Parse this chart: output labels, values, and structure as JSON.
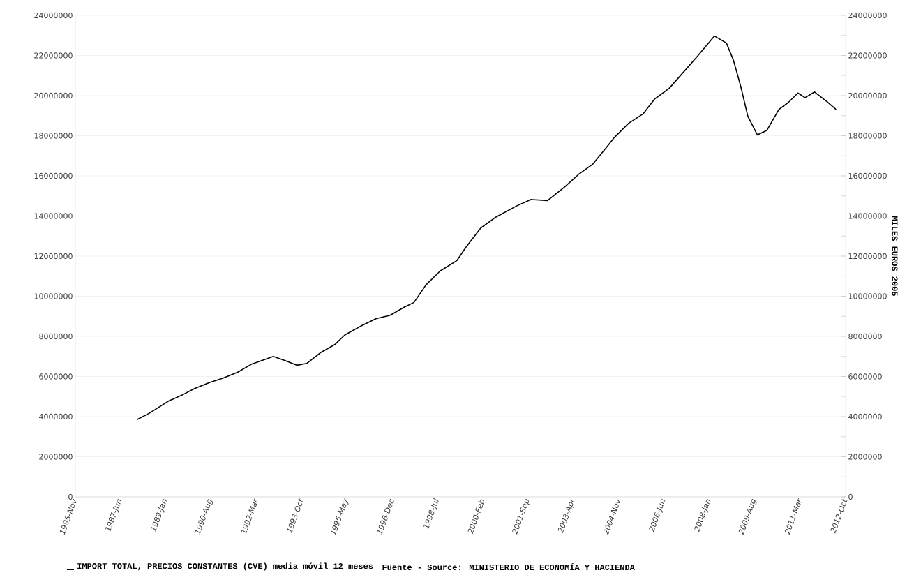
{
  "chart_data": {
    "type": "line",
    "y2label": "MILES EUROS 2005",
    "annotations": [
      "Fuente - Source: MINISTERIO DE ECONOMÍA Y HACIENDA"
    ],
    "x": [
      "1988-01",
      "1988-06",
      "1989-02",
      "1989-08",
      "1990-01",
      "1990-07",
      "1991-01",
      "1991-07",
      "1992-01",
      "1992-10",
      "1993-03",
      "1993-08",
      "1993-12",
      "1994-06",
      "1994-12",
      "1995-04",
      "1995-11",
      "1996-05",
      "1996-11",
      "1997-05",
      "1997-09",
      "1998-02",
      "1998-08",
      "1999-03",
      "1999-07",
      "2000-01",
      "2000-07",
      "2001-04",
      "2001-10",
      "2002-05",
      "2002-12",
      "2003-06",
      "2003-12",
      "2004-06",
      "2004-09",
      "2005-03",
      "2005-09",
      "2006-02",
      "2006-08",
      "2007-02",
      "2007-08",
      "2008-03",
      "2008-08",
      "2008-11",
      "2009-02",
      "2009-05",
      "2009-09",
      "2010-01",
      "2010-06",
      "2010-10",
      "2011-02",
      "2011-05",
      "2011-09",
      "2012-02",
      "2012-06"
    ],
    "series": [
      {
        "name": "IMPORT TOTAL, PRECIOS CONSTANTES (CVE) media móvil 12 meses",
        "color": "#000000",
        "values": [
          3860000,
          4170000,
          4770000,
          5090000,
          5400000,
          5690000,
          5920000,
          6210000,
          6620000,
          7000000,
          6790000,
          6560000,
          6650000,
          7200000,
          7610000,
          8070000,
          8530000,
          8880000,
          9050000,
          9460000,
          9690000,
          10560000,
          11260000,
          11780000,
          12480000,
          13400000,
          13920000,
          14500000,
          14820000,
          14770000,
          15430000,
          16070000,
          16590000,
          17460000,
          17910000,
          18620000,
          19080000,
          19840000,
          20360000,
          21170000,
          21980000,
          22970000,
          22620000,
          21750000,
          20470000,
          18970000,
          18040000,
          18270000,
          19310000,
          19660000,
          20130000,
          19900000,
          20180000,
          19720000,
          19310000
        ]
      }
    ],
    "xlim": [
      "1985-11",
      "2012-10"
    ],
    "xticks": [
      {
        "value": "1985-11",
        "label": "1985-Nov"
      },
      {
        "value": "1987-06",
        "label": "1987-Jun"
      },
      {
        "value": "1989-01",
        "label": "1989-Jan"
      },
      {
        "value": "1990-08",
        "label": "1990-Aug"
      },
      {
        "value": "1992-03",
        "label": "1992-Mar"
      },
      {
        "value": "1993-10",
        "label": "1993-Oct"
      },
      {
        "value": "1995-05",
        "label": "1995-May"
      },
      {
        "value": "1996-12",
        "label": "1996-Dec"
      },
      {
        "value": "1998-07",
        "label": "1998-Jul"
      },
      {
        "value": "2000-02",
        "label": "2000-Feb"
      },
      {
        "value": "2001-09",
        "label": "2001-Sep"
      },
      {
        "value": "2003-04",
        "label": "2003-Apr"
      },
      {
        "value": "2004-11",
        "label": "2004-Nov"
      },
      {
        "value": "2006-06",
        "label": "2006-Jun"
      },
      {
        "value": "2008-01",
        "label": "2008-Jan"
      },
      {
        "value": "2009-08",
        "label": "2009-Aug"
      },
      {
        "value": "2011-03",
        "label": "2011-Mar"
      },
      {
        "value": "2012-10",
        "label": "2012-Oct"
      }
    ],
    "ylim": [
      0,
      24000000
    ],
    "yticks": [
      0,
      2000000,
      4000000,
      6000000,
      8000000,
      10000000,
      12000000,
      14000000,
      16000000,
      18000000,
      20000000,
      22000000,
      24000000
    ],
    "y2lim": [
      0,
      24000000
    ],
    "y2ticks": [
      0,
      {
        "value": 1000000,
        "label": null
      },
      2000000,
      {
        "value": 3000000,
        "label": null
      },
      4000000,
      {
        "value": 5000000,
        "label": null
      },
      6000000,
      {
        "value": 7000000,
        "label": null
      },
      8000000,
      {
        "value": 9000000,
        "label": null
      },
      10000000,
      {
        "value": 11000000,
        "label": null
      },
      12000000,
      {
        "value": 13000000,
        "label": null
      },
      14000000,
      {
        "value": 15000000,
        "label": null
      },
      16000000,
      {
        "value": 17000000,
        "label": null
      },
      18000000,
      {
        "value": 19000000,
        "label": null
      },
      20000000,
      {
        "value": 21000000,
        "label": null
      },
      22000000,
      {
        "value": 23000000,
        "label": null
      },
      24000000
    ],
    "grid": "y",
    "legend": "bottom"
  }
}
